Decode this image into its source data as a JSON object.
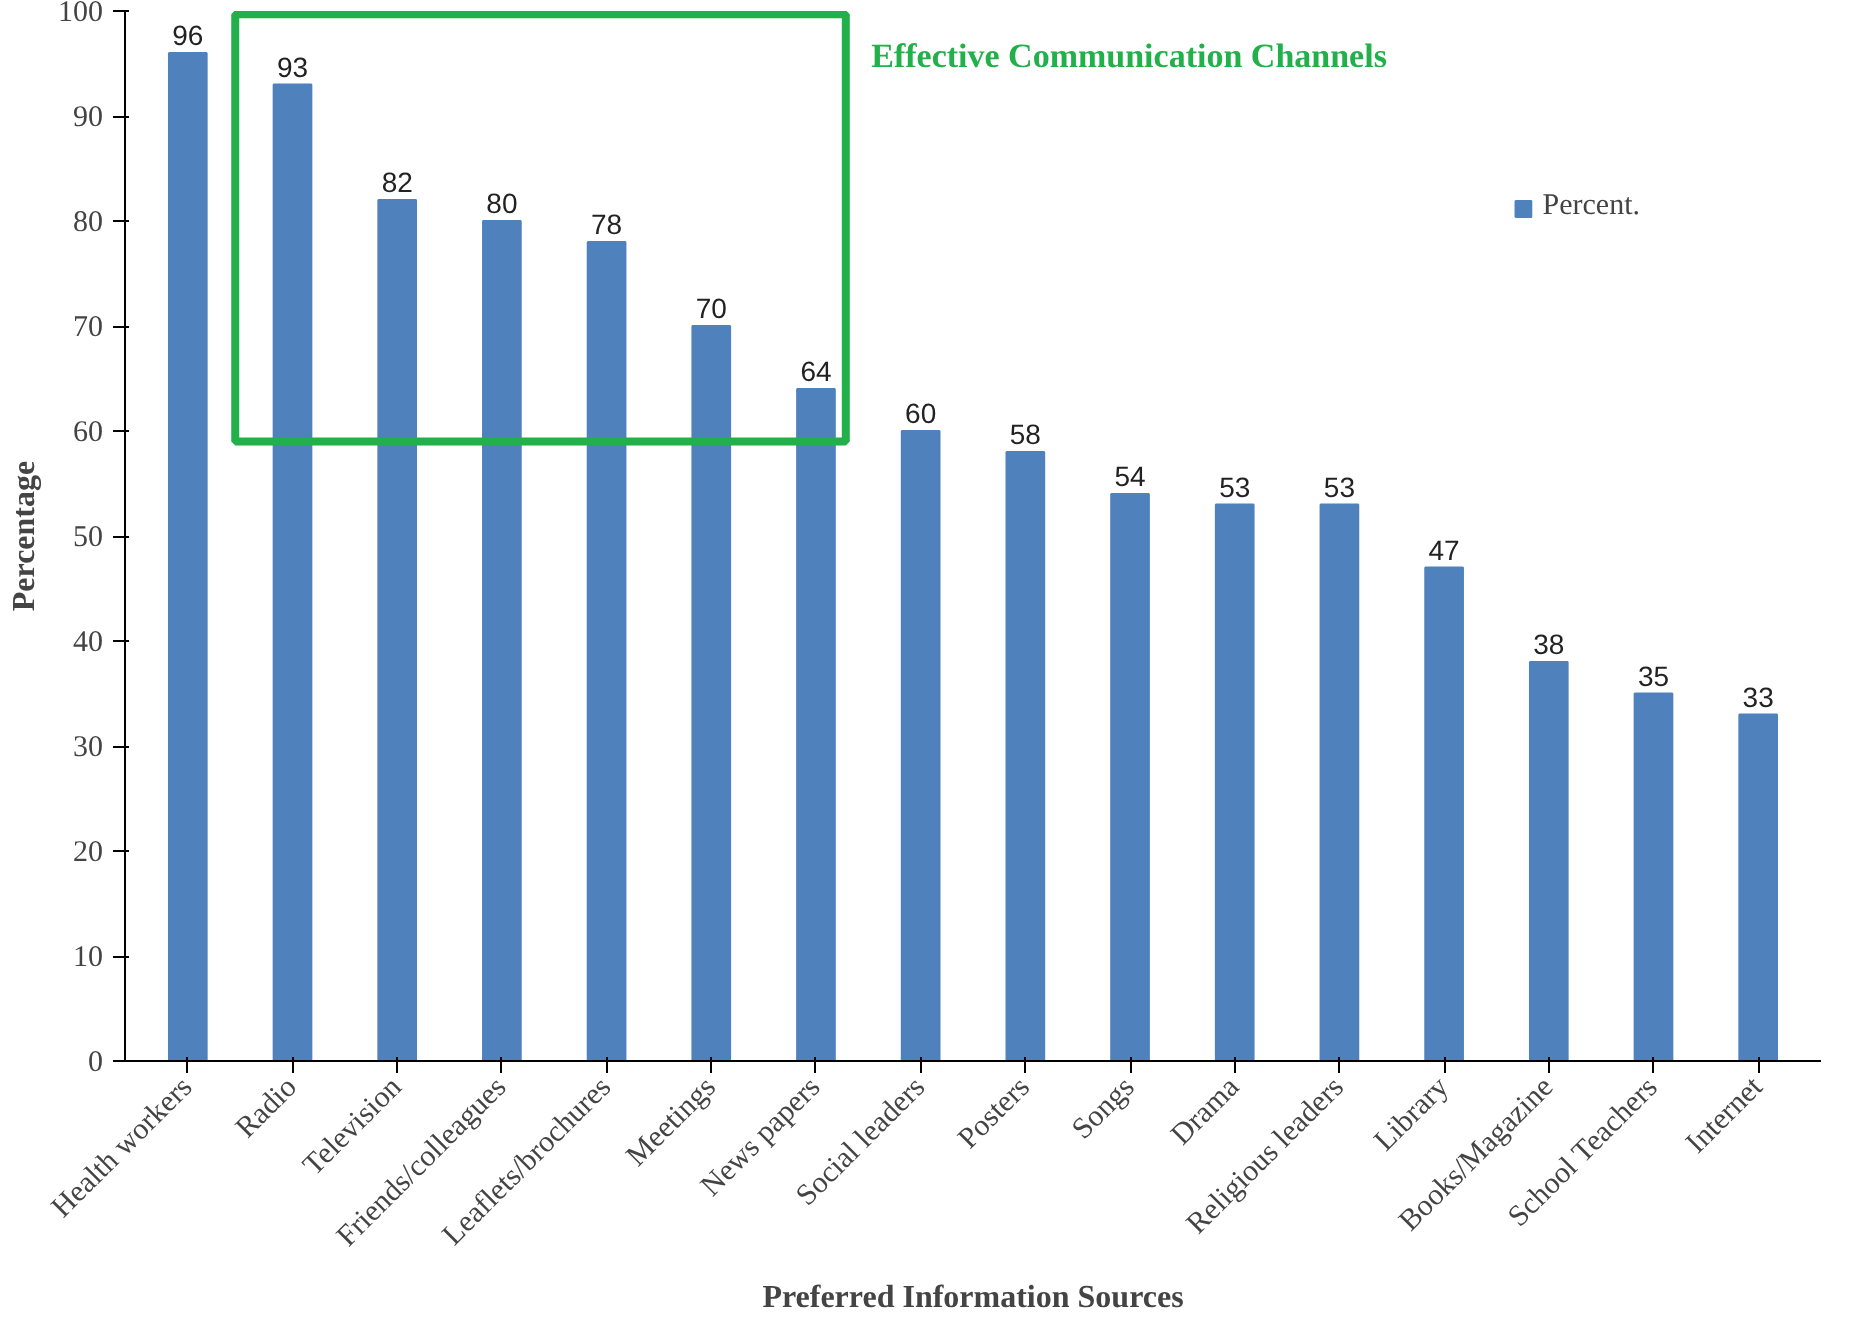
{
  "chart_data": {
    "type": "bar",
    "xlabel": "Preferred Information Sources",
    "ylabel": "Percentage",
    "categories": [
      "Health workers",
      "Radio",
      "Television",
      "Friends/colleagues",
      "Leaflets/brochures",
      "Meetings",
      "News papers",
      "Social leaders",
      "Posters",
      "Songs",
      "Drama",
      "Religious leaders",
      "Library",
      "Books/Magazine",
      "School Teachers",
      "Internet"
    ],
    "series": [
      {
        "name": "Percent.",
        "color": "#4f81bd",
        "values": [
          96,
          93,
          82,
          80,
          78,
          70,
          64,
          60,
          58,
          54,
          53,
          53,
          47,
          38,
          35,
          33
        ]
      }
    ],
    "ylim": [
      0,
      100
    ],
    "yticks": [
      0,
      10,
      20,
      30,
      40,
      50,
      60,
      70,
      80,
      90,
      100
    ],
    "grid": false,
    "legend": "top right",
    "data_labels": true,
    "annotations": [
      "Effective Communication Channels"
    ]
  }
}
